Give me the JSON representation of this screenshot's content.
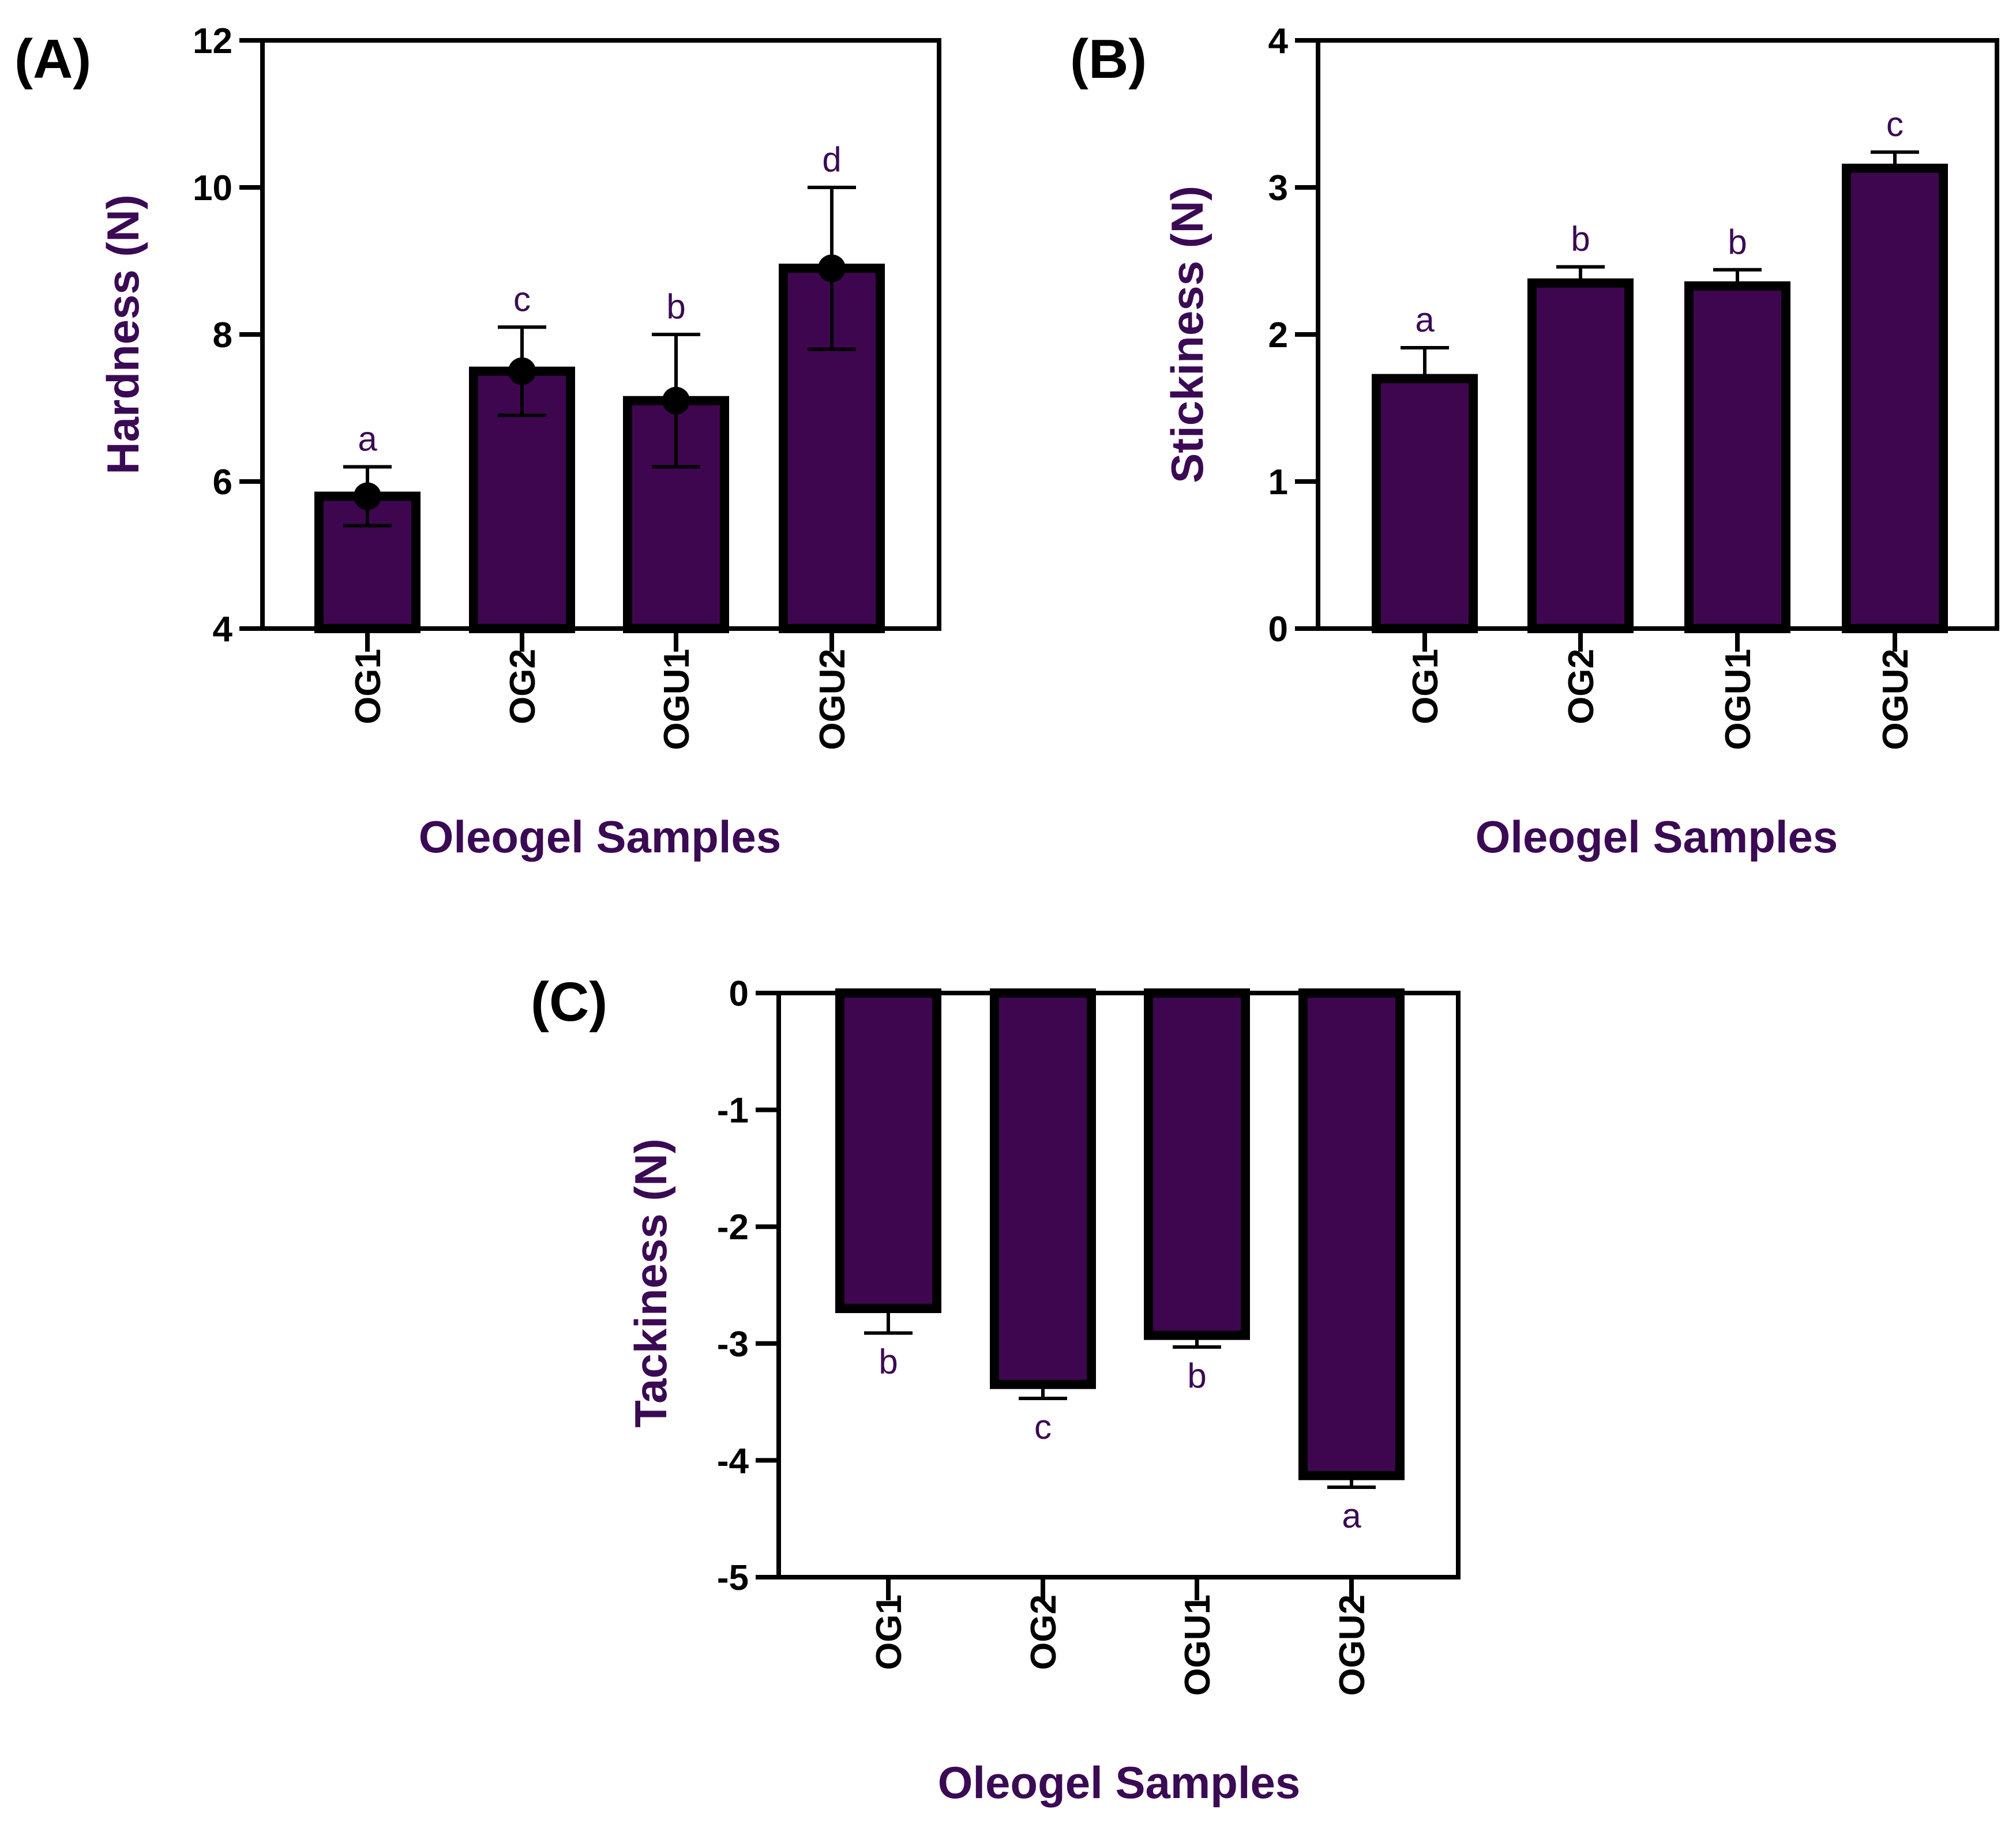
{
  "colors": {
    "bar_fill": "#3f0650",
    "bar_edge": "#000000",
    "label_purple": "#3b0a54",
    "axis": "#000000"
  },
  "chart_data": [
    {
      "panel": "(A)",
      "type": "bar",
      "categories": [
        "OG1",
        "OG2",
        "OGU1",
        "OGU2"
      ],
      "values": [
        5.8,
        7.5,
        7.1,
        8.9
      ],
      "errors": [
        0.4,
        0.6,
        0.9,
        1.1
      ],
      "point_markers": true,
      "sig_letters": [
        "a",
        "c",
        "b",
        "d"
      ],
      "xlabel": "Oleogel Samples",
      "ylabel": "Hardness (N)",
      "ylim": [
        4,
        12
      ],
      "yticks": [
        4,
        6,
        8,
        10,
        12
      ],
      "ytick_labels": [
        "4",
        "6",
        "8",
        "10",
        "12"
      ]
    },
    {
      "panel": "(B)",
      "type": "bar",
      "categories": [
        "OG1",
        "OG2",
        "OGU1",
        "OGU2"
      ],
      "values": [
        1.7,
        2.35,
        2.33,
        3.13
      ],
      "errors": [
        0.21,
        0.11,
        0.11,
        0.11
      ],
      "point_markers": false,
      "sig_letters": [
        "a",
        "b",
        "b",
        "c"
      ],
      "xlabel": "Oleogel Samples",
      "ylabel": "Stickiness (N)",
      "ylim": [
        0,
        4
      ],
      "yticks": [
        0,
        1,
        2,
        3,
        4
      ],
      "ytick_labels": [
        "0",
        "1",
        "2",
        "3",
        "4"
      ]
    },
    {
      "panel": "(C)",
      "type": "bar",
      "categories": [
        "OG1",
        "OG2",
        "OGU1",
        "OGU2"
      ],
      "values": [
        -2.7,
        -3.35,
        -2.93,
        -4.13
      ],
      "errors": [
        0.21,
        0.12,
        0.1,
        0.1
      ],
      "point_markers": false,
      "sig_letters": [
        "b",
        "c",
        "b",
        "a"
      ],
      "xlabel": "Oleogel Samples",
      "ylabel": "Tackiness (N)",
      "ylim": [
        -5,
        0
      ],
      "yticks": [
        0,
        -1,
        -2,
        -3,
        -4,
        -5
      ],
      "ytick_labels": [
        "0",
        "-1",
        "-2",
        "-3",
        "-4",
        "-5"
      ]
    }
  ]
}
